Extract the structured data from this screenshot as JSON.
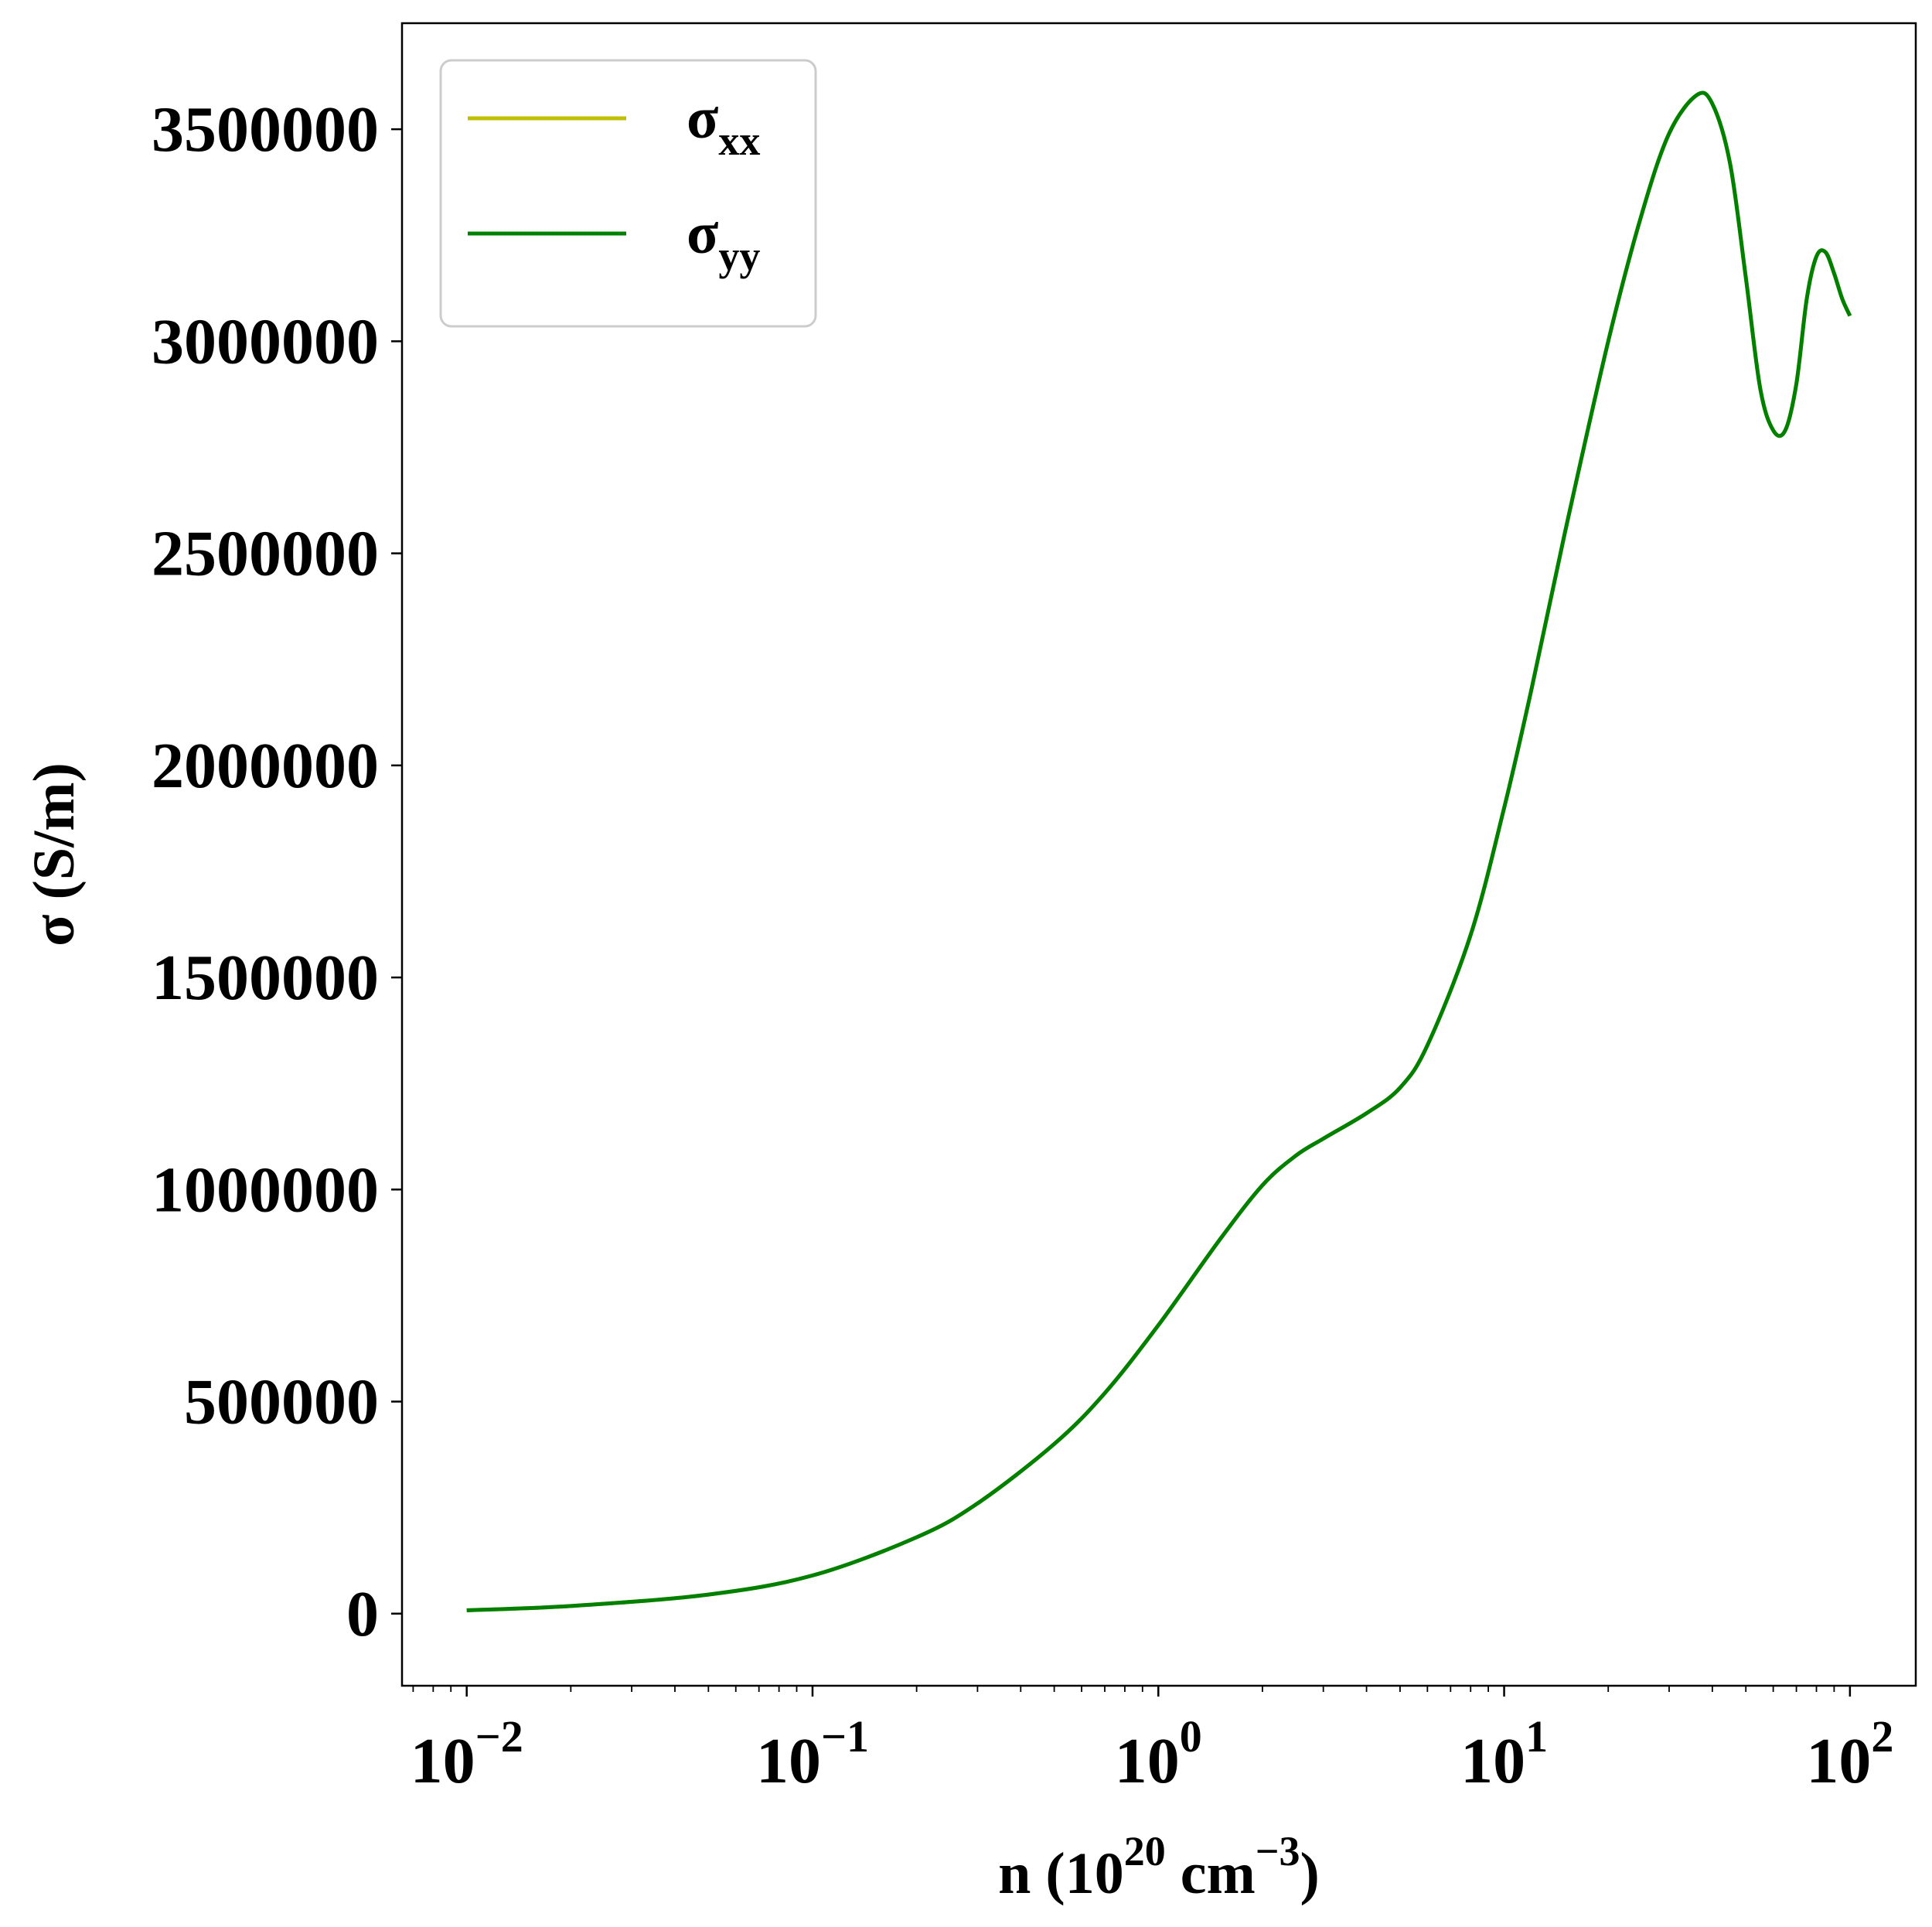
{
  "chart_data": {
    "type": "line",
    "title": "",
    "xlabel": {
      "base": "n (10",
      "exp1": "20",
      "mid": " cm",
      "exp2": "−3",
      "tail": ")"
    },
    "ylabel": "σ (S/m)",
    "xscale": "log",
    "xlim": [
      0.0065,
      155
    ],
    "ylim": [
      -170000,
      3750000
    ],
    "grid": false,
    "legend_position": "top-left",
    "x_ticks": [
      {
        "value": 0.01,
        "base": "10",
        "exp": "−2"
      },
      {
        "value": 0.1,
        "base": "10",
        "exp": "−1"
      },
      {
        "value": 1,
        "base": "10",
        "exp": "0"
      },
      {
        "value": 10,
        "base": "10",
        "exp": "1"
      },
      {
        "value": 100,
        "base": "10",
        "exp": "2"
      }
    ],
    "y_ticks": [
      {
        "value": 0,
        "label": "0"
      },
      {
        "value": 500000,
        "label": "500000"
      },
      {
        "value": 1000000,
        "label": "1000000"
      },
      {
        "value": 1500000,
        "label": "1500000"
      },
      {
        "value": 2000000,
        "label": "2000000"
      },
      {
        "value": 2500000,
        "label": "2500000"
      },
      {
        "value": 3000000,
        "label": "3000000"
      },
      {
        "value": 3500000,
        "label": "3500000"
      }
    ],
    "series": [
      {
        "name": "σxx",
        "label_main": "σ",
        "label_sub": "xx",
        "color": "#bfbf00",
        "x": [
          0.01,
          0.02,
          0.05,
          0.1,
          0.2,
          0.3,
          0.5,
          0.7,
          1.0,
          1.5,
          2.0,
          2.5,
          3.0,
          4.0,
          5.0,
          6.0,
          8.0,
          10,
          12,
          15,
          20,
          25,
          30,
          36,
          40,
          45,
          50,
          55,
          60,
          65,
          70,
          75,
          80,
          85,
          90,
          95,
          100
        ],
        "y": [
          8000,
          18000,
          45000,
          90000,
          180000,
          260000,
          400000,
          520000,
          680000,
          880000,
          1010000,
          1080000,
          1120000,
          1180000,
          1240000,
          1340000,
          1600000,
          1900000,
          2180000,
          2550000,
          3000000,
          3300000,
          3490000,
          3580000,
          3560000,
          3420000,
          3150000,
          2890000,
          2790000,
          2790000,
          2900000,
          3100000,
          3200000,
          3210000,
          3160000,
          3100000,
          3060000
        ]
      },
      {
        "name": "σyy",
        "label_main": "σ",
        "label_sub": "yy",
        "color": "#008000",
        "x": [
          0.01,
          0.02,
          0.05,
          0.1,
          0.2,
          0.3,
          0.5,
          0.7,
          1.0,
          1.5,
          2.0,
          2.5,
          3.0,
          4.0,
          5.0,
          6.0,
          8.0,
          10,
          12,
          15,
          20,
          25,
          30,
          36,
          40,
          45,
          50,
          55,
          60,
          65,
          70,
          75,
          80,
          85,
          90,
          95,
          100
        ],
        "y": [
          8000,
          18000,
          45000,
          90000,
          180000,
          260000,
          400000,
          520000,
          680000,
          880000,
          1010000,
          1080000,
          1120000,
          1180000,
          1240000,
          1340000,
          1600000,
          1900000,
          2180000,
          2550000,
          3000000,
          3300000,
          3490000,
          3580000,
          3560000,
          3420000,
          3150000,
          2890000,
          2790000,
          2790000,
          2900000,
          3100000,
          3200000,
          3210000,
          3160000,
          3100000,
          3060000
        ]
      }
    ]
  }
}
